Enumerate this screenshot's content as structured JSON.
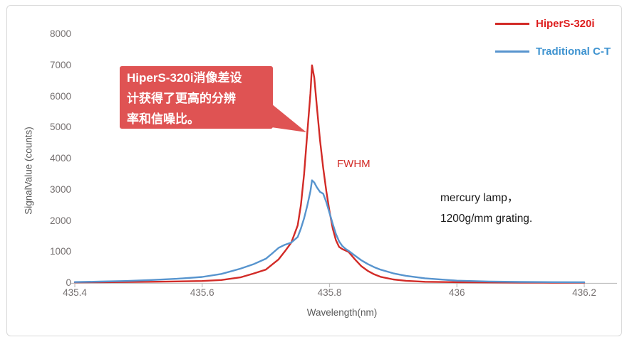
{
  "legend": {
    "items": [
      {
        "label": "HiperS-320i",
        "text_color": "#DE1F1F",
        "line_color": "#D22B27"
      },
      {
        "label": "Traditional C-T",
        "text_color": "#3E93D0",
        "line_color": "#5794CE"
      }
    ]
  },
  "callout": {
    "bg_color": "#DF5353",
    "text_color": "#FFFFFF",
    "text_lines": [
      "HiperS-320i消像差设",
      "计获得了更高的分辨",
      "率和信噪比。"
    ]
  },
  "annotations": {
    "fwhm_label": "FWHM",
    "fwhm_color": "#D22B27",
    "note_line1": "mercury lamp，",
    "note_line2": "1200g/mm grating."
  },
  "axis_colors": {
    "axis_line": "#BFBFBF",
    "tick_text": "#767171",
    "title_text": "#595959"
  },
  "chart_data": {
    "type": "line",
    "title": "",
    "xlabel": "Wavelength(nm)",
    "ylabel": "SignalValue (counts)",
    "xlim": [
      435.4,
      436.2
    ],
    "ylim": [
      0,
      8000
    ],
    "x_ticks": [
      435.4,
      435.6,
      435.8,
      436.0,
      436.2
    ],
    "x_tick_labels": [
      "435.4",
      "435.6",
      "435.8",
      "436",
      "436.2"
    ],
    "y_ticks": [
      0,
      1000,
      2000,
      3000,
      4000,
      5000,
      6000,
      7000,
      8000
    ],
    "y_tick_labels": [
      "0",
      "1000",
      "2000",
      "3000",
      "4000",
      "5000",
      "6000",
      "7000",
      "8000"
    ],
    "grid": false,
    "legend_position": "top-right",
    "series": [
      {
        "name": "HiperS-320i",
        "color": "#D22B27",
        "peak": {
          "wavelength": 435.77,
          "value": 7000
        },
        "points": [
          [
            435.4,
            20
          ],
          [
            435.44,
            25
          ],
          [
            435.48,
            30
          ],
          [
            435.52,
            40
          ],
          [
            435.56,
            50
          ],
          [
            435.6,
            65
          ],
          [
            435.63,
            95
          ],
          [
            435.66,
            180
          ],
          [
            435.68,
            300
          ],
          [
            435.7,
            430
          ],
          [
            435.72,
            760
          ],
          [
            435.73,
            1020
          ],
          [
            435.74,
            1300
          ],
          [
            435.75,
            1850
          ],
          [
            435.755,
            2500
          ],
          [
            435.76,
            3500
          ],
          [
            435.765,
            4800
          ],
          [
            435.77,
            6100
          ],
          [
            435.7725,
            7000
          ],
          [
            435.776,
            6600
          ],
          [
            435.78,
            5700
          ],
          [
            435.785,
            4600
          ],
          [
            435.79,
            3700
          ],
          [
            435.795,
            2950
          ],
          [
            435.8,
            2300
          ],
          [
            435.805,
            1750
          ],
          [
            435.81,
            1380
          ],
          [
            435.815,
            1160
          ],
          [
            435.82,
            1090
          ],
          [
            435.83,
            1000
          ],
          [
            435.84,
            760
          ],
          [
            435.85,
            540
          ],
          [
            435.86,
            390
          ],
          [
            435.87,
            280
          ],
          [
            435.88,
            200
          ],
          [
            435.9,
            115
          ],
          [
            435.92,
            70
          ],
          [
            435.95,
            40
          ],
          [
            436.0,
            25
          ],
          [
            436.05,
            18
          ],
          [
            436.1,
            14
          ],
          [
            436.15,
            11
          ],
          [
            436.2,
            10
          ]
        ]
      },
      {
        "name": "Traditional C-T",
        "color": "#5794CE",
        "peak": {
          "wavelength": 435.77,
          "value": 3300
        },
        "points": [
          [
            435.4,
            30
          ],
          [
            435.44,
            45
          ],
          [
            435.48,
            65
          ],
          [
            435.52,
            95
          ],
          [
            435.56,
            135
          ],
          [
            435.6,
            195
          ],
          [
            435.63,
            290
          ],
          [
            435.66,
            460
          ],
          [
            435.68,
            600
          ],
          [
            435.7,
            780
          ],
          [
            435.71,
            950
          ],
          [
            435.72,
            1130
          ],
          [
            435.73,
            1230
          ],
          [
            435.74,
            1300
          ],
          [
            435.75,
            1480
          ],
          [
            435.755,
            1750
          ],
          [
            435.76,
            2080
          ],
          [
            435.765,
            2480
          ],
          [
            435.77,
            2950
          ],
          [
            435.7725,
            3300
          ],
          [
            435.776,
            3230
          ],
          [
            435.78,
            3080
          ],
          [
            435.785,
            2930
          ],
          [
            435.79,
            2870
          ],
          [
            435.795,
            2600
          ],
          [
            435.8,
            2250
          ],
          [
            435.805,
            1900
          ],
          [
            435.81,
            1580
          ],
          [
            435.815,
            1340
          ],
          [
            435.82,
            1190
          ],
          [
            435.825,
            1100
          ],
          [
            435.83,
            1030
          ],
          [
            435.84,
            880
          ],
          [
            435.85,
            730
          ],
          [
            435.86,
            610
          ],
          [
            435.87,
            510
          ],
          [
            435.88,
            430
          ],
          [
            435.9,
            310
          ],
          [
            435.92,
            230
          ],
          [
            435.95,
            150
          ],
          [
            436.0,
            75
          ],
          [
            436.05,
            48
          ],
          [
            436.1,
            34
          ],
          [
            436.15,
            27
          ],
          [
            436.2,
            22
          ]
        ]
      }
    ]
  }
}
